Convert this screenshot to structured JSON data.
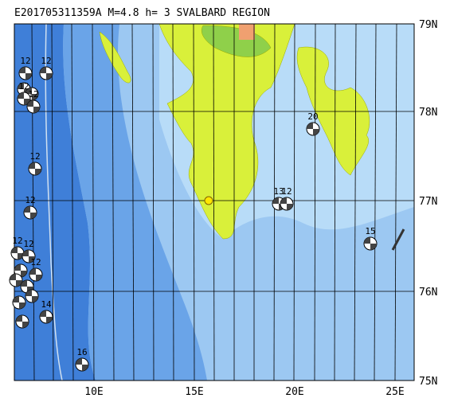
{
  "header": {
    "title": "E201705311359A M=4.8 h=  3 SVALBARD REGION"
  },
  "lat_labels": [
    "79N",
    "78N",
    "77N",
    "76N",
    "75N"
  ],
  "lon_labels": [
    "10E",
    "15E",
    "20E",
    "25E"
  ],
  "events": [
    {
      "label": "12"
    },
    {
      "label": "12"
    },
    {
      "label": "12"
    },
    {
      "label": "12"
    },
    {
      "label": "12"
    },
    {
      "label": "12"
    },
    {
      "label": "12"
    },
    {
      "label": "12"
    },
    {
      "label": "12"
    },
    {
      "label": "14"
    },
    {
      "label": "16"
    },
    {
      "label": "20"
    },
    {
      "label": "13"
    },
    {
      "label": "12"
    },
    {
      "label": "15"
    }
  ]
}
